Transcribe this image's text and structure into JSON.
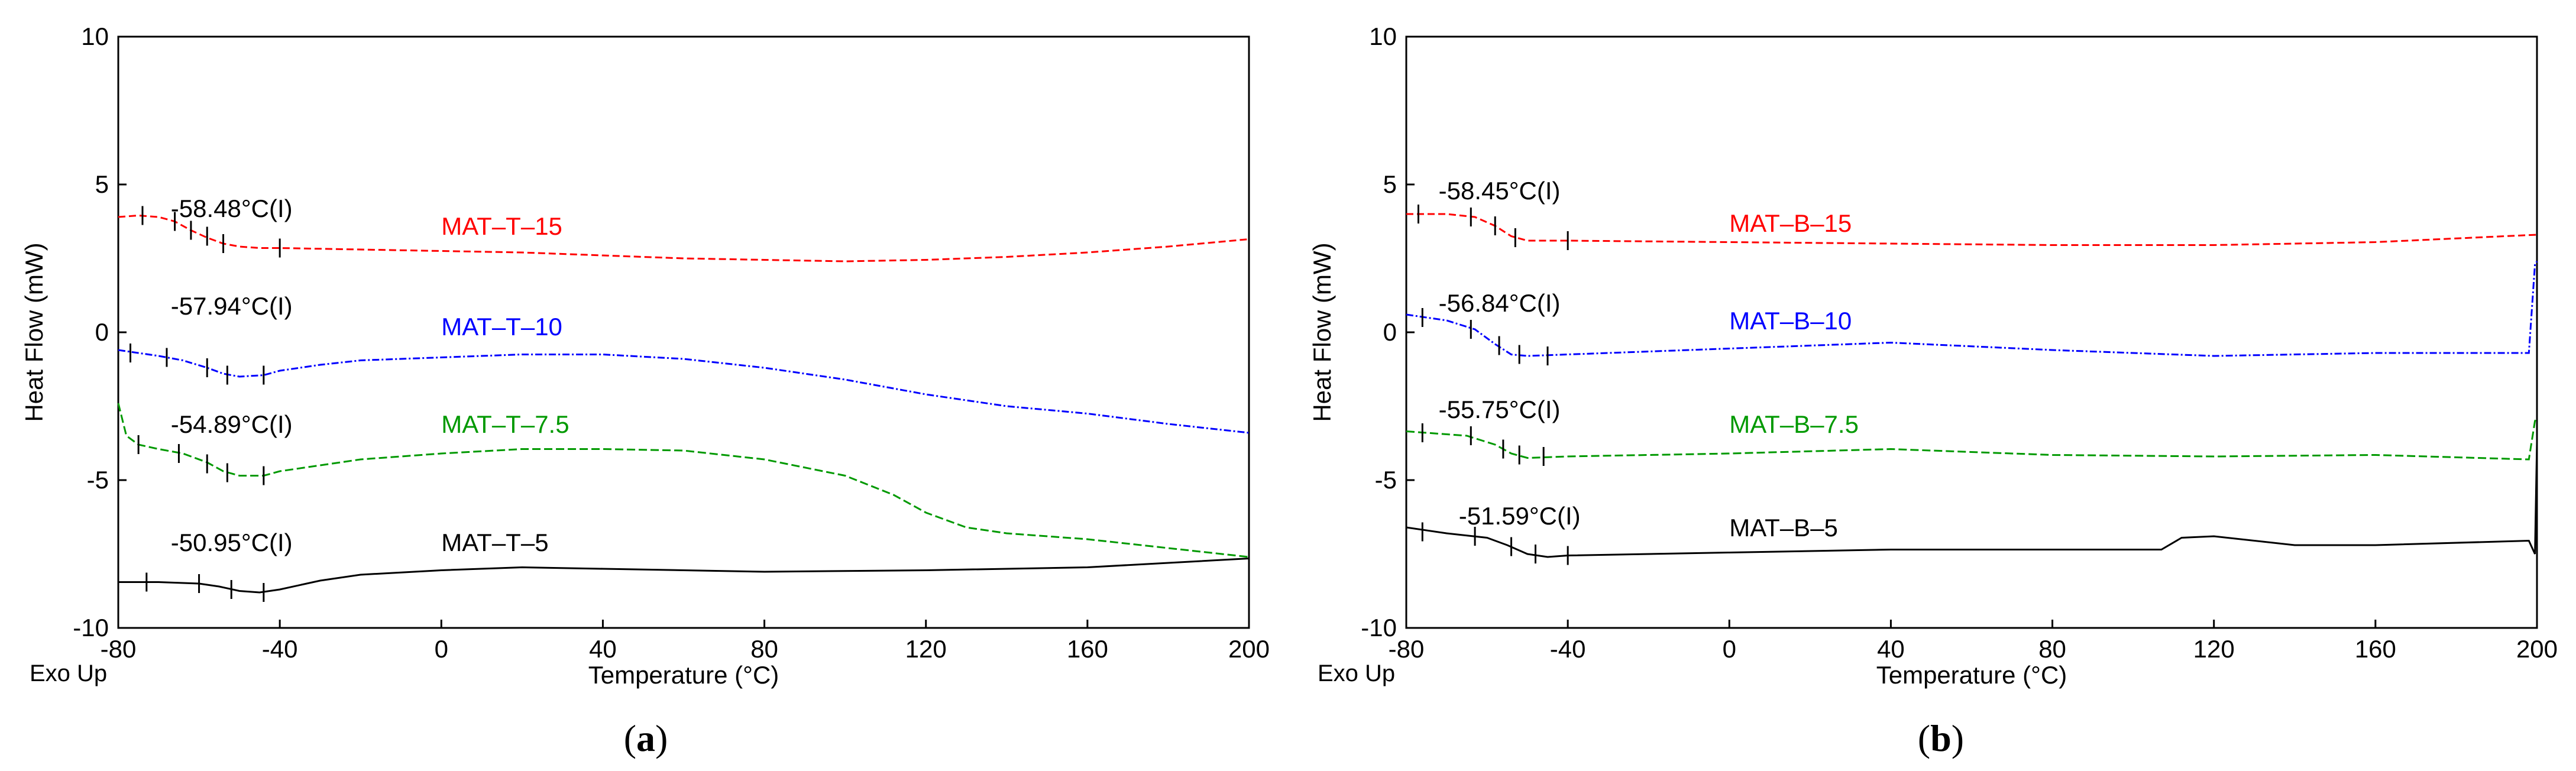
{
  "chart_data": [
    {
      "type": "line",
      "panel_label": "a",
      "xlabel": "Temperature (°C)",
      "ylabel": "Heat Flow (mW)",
      "corner_label": "Exo Up",
      "xlim": [
        -80,
        200
      ],
      "ylim": [
        -10,
        10
      ],
      "xticks": [
        -80,
        -40,
        0,
        40,
        80,
        120,
        160,
        200
      ],
      "yticks": [
        10,
        5,
        0,
        -5,
        -10
      ],
      "series": [
        {
          "name": "MAT–T–15",
          "color": "#ff0000",
          "dash": "12,6",
          "label_pos": [
            0,
            3.3
          ],
          "annotation": "-58.48°C(I)",
          "annotation_pos": [
            -67,
            3.9
          ],
          "points": [
            [
              -80,
              3.9
            ],
            [
              -75,
              3.95
            ],
            [
              -70,
              3.9
            ],
            [
              -66,
              3.75
            ],
            [
              -62,
              3.45
            ],
            [
              -58,
              3.2
            ],
            [
              -54,
              3.0
            ],
            [
              -50,
              2.9
            ],
            [
              -45,
              2.85
            ],
            [
              -40,
              2.85
            ],
            [
              -20,
              2.8
            ],
            [
              0,
              2.75
            ],
            [
              20,
              2.7
            ],
            [
              40,
              2.6
            ],
            [
              60,
              2.5
            ],
            [
              80,
              2.45
            ],
            [
              100,
              2.4
            ],
            [
              120,
              2.45
            ],
            [
              140,
              2.55
            ],
            [
              160,
              2.7
            ],
            [
              180,
              2.9
            ],
            [
              200,
              3.15
            ]
          ],
          "tick_marks": [
            [
              -74,
              3.95
            ],
            [
              -66,
              3.75
            ],
            [
              -62,
              3.45
            ],
            [
              -58,
              3.25
            ],
            [
              -54,
              3.0
            ],
            [
              -40,
              2.85
            ]
          ]
        },
        {
          "name": "MAT–T–10",
          "color": "#0000ff",
          "dash": "12,4,3,4",
          "label_pos": [
            0,
            -0.1
          ],
          "annotation": "-57.94°C(I)",
          "annotation_pos": [
            -67,
            0.6
          ],
          "points": [
            [
              -80,
              -0.6
            ],
            [
              -75,
              -0.7
            ],
            [
              -70,
              -0.8
            ],
            [
              -64,
              -0.95
            ],
            [
              -58,
              -1.2
            ],
            [
              -54,
              -1.4
            ],
            [
              -50,
              -1.5
            ],
            [
              -44,
              -1.45
            ],
            [
              -40,
              -1.3
            ],
            [
              -30,
              -1.1
            ],
            [
              -20,
              -0.95
            ],
            [
              0,
              -0.85
            ],
            [
              20,
              -0.75
            ],
            [
              40,
              -0.75
            ],
            [
              60,
              -0.9
            ],
            [
              80,
              -1.2
            ],
            [
              100,
              -1.6
            ],
            [
              120,
              -2.1
            ],
            [
              140,
              -2.5
            ],
            [
              160,
              -2.75
            ],
            [
              180,
              -3.1
            ],
            [
              200,
              -3.4
            ]
          ],
          "tick_marks": [
            [
              -77,
              -0.7
            ],
            [
              -68,
              -0.85
            ],
            [
              -58,
              -1.2
            ],
            [
              -53,
              -1.45
            ],
            [
              -44,
              -1.45
            ]
          ]
        },
        {
          "name": "MAT–T–7.5",
          "color": "#009900",
          "dash": "14,6",
          "label_pos": [
            0,
            -3.4
          ],
          "annotation": "-54.89°C(I)",
          "annotation_pos": [
            -67,
            -3.4
          ],
          "points": [
            [
              -80,
              -2.4
            ],
            [
              -78,
              -3.5
            ],
            [
              -75,
              -3.8
            ],
            [
              -70,
              -3.95
            ],
            [
              -64,
              -4.1
            ],
            [
              -58,
              -4.4
            ],
            [
              -54,
              -4.7
            ],
            [
              -50,
              -4.85
            ],
            [
              -44,
              -4.85
            ],
            [
              -40,
              -4.7
            ],
            [
              -30,
              -4.5
            ],
            [
              -20,
              -4.3
            ],
            [
              0,
              -4.1
            ],
            [
              20,
              -3.95
            ],
            [
              40,
              -3.95
            ],
            [
              60,
              -4.0
            ],
            [
              80,
              -4.3
            ],
            [
              100,
              -4.85
            ],
            [
              112,
              -5.5
            ],
            [
              120,
              -6.1
            ],
            [
              130,
              -6.6
            ],
            [
              140,
              -6.8
            ],
            [
              160,
              -7.0
            ],
            [
              180,
              -7.3
            ],
            [
              200,
              -7.6
            ]
          ],
          "tick_marks": [
            [
              -75,
              -3.8
            ],
            [
              -65,
              -4.1
            ],
            [
              -58,
              -4.45
            ],
            [
              -53,
              -4.75
            ],
            [
              -44,
              -4.85
            ]
          ]
        },
        {
          "name": "MAT–T–5",
          "color": "#000000",
          "dash": "",
          "label_pos": [
            0,
            -7.4
          ],
          "annotation": "-50.95°C(I)",
          "annotation_pos": [
            -67,
            -7.4
          ],
          "points": [
            [
              -80,
              -8.45
            ],
            [
              -70,
              -8.45
            ],
            [
              -60,
              -8.5
            ],
            [
              -55,
              -8.6
            ],
            [
              -50,
              -8.75
            ],
            [
              -45,
              -8.8
            ],
            [
              -40,
              -8.7
            ],
            [
              -30,
              -8.4
            ],
            [
              -20,
              -8.2
            ],
            [
              0,
              -8.05
            ],
            [
              20,
              -7.95
            ],
            [
              40,
              -8.0
            ],
            [
              80,
              -8.1
            ],
            [
              120,
              -8.05
            ],
            [
              160,
              -7.95
            ],
            [
              200,
              -7.65
            ]
          ],
          "tick_marks": [
            [
              -73,
              -8.45
            ],
            [
              -60,
              -8.5
            ],
            [
              -52,
              -8.7
            ],
            [
              -44,
              -8.8
            ]
          ]
        }
      ]
    },
    {
      "type": "line",
      "panel_label": "b",
      "xlabel": "Temperature (°C)",
      "ylabel": "Heat Flow (mW)",
      "corner_label": "Exo Up",
      "xlim": [
        -80,
        200
      ],
      "ylim": [
        -10,
        10
      ],
      "xticks": [
        -80,
        -40,
        0,
        40,
        80,
        120,
        160,
        200
      ],
      "yticks": [
        10,
        5,
        0,
        -5,
        -10
      ],
      "series": [
        {
          "name": "MAT–B–15",
          "color": "#ff0000",
          "dash": "12,6",
          "label_pos": [
            0,
            3.4
          ],
          "annotation": "-58.45°C(I)",
          "annotation_pos": [
            -72,
            4.5
          ],
          "points": [
            [
              -80,
              4.0
            ],
            [
              -70,
              4.0
            ],
            [
              -63,
              3.9
            ],
            [
              -58,
              3.6
            ],
            [
              -54,
              3.25
            ],
            [
              -50,
              3.1
            ],
            [
              -40,
              3.1
            ],
            [
              0,
              3.05
            ],
            [
              40,
              3.0
            ],
            [
              80,
              2.95
            ],
            [
              120,
              2.95
            ],
            [
              160,
              3.05
            ],
            [
              200,
              3.3
            ]
          ],
          "tick_marks": [
            [
              -77,
              4.0
            ],
            [
              -64,
              3.9
            ],
            [
              -58,
              3.6
            ],
            [
              -53,
              3.2
            ],
            [
              -40,
              3.1
            ]
          ]
        },
        {
          "name": "MAT–B–10",
          "color": "#0000ff",
          "dash": "12,4,3,4",
          "label_pos": [
            0,
            0.1
          ],
          "annotation": "-56.84°C(I)",
          "annotation_pos": [
            -72,
            0.7
          ],
          "points": [
            [
              -80,
              0.6
            ],
            [
              -70,
              0.4
            ],
            [
              -63,
              0.1
            ],
            [
              -58,
              -0.4
            ],
            [
              -54,
              -0.75
            ],
            [
              -50,
              -0.8
            ],
            [
              -40,
              -0.75
            ],
            [
              0,
              -0.55
            ],
            [
              40,
              -0.35
            ],
            [
              80,
              -0.6
            ],
            [
              120,
              -0.8
            ],
            [
              160,
              -0.7
            ],
            [
              198,
              -0.7
            ],
            [
              199.5,
              2.3
            ],
            [
              200,
              2.4
            ]
          ],
          "tick_marks": [
            [
              -76,
              0.5
            ],
            [
              -64,
              0.1
            ],
            [
              -57,
              -0.45
            ],
            [
              -52,
              -0.75
            ],
            [
              -45,
              -0.8
            ]
          ]
        },
        {
          "name": "MAT–B–7.5",
          "color": "#009900",
          "dash": "14,6",
          "label_pos": [
            0,
            -3.4
          ],
          "annotation": "-55.75°C(I)",
          "annotation_pos": [
            -72,
            -2.9
          ],
          "points": [
            [
              -80,
              -3.35
            ],
            [
              -65,
              -3.5
            ],
            [
              -58,
              -3.8
            ],
            [
              -54,
              -4.1
            ],
            [
              -50,
              -4.25
            ],
            [
              -40,
              -4.2
            ],
            [
              0,
              -4.1
            ],
            [
              40,
              -3.95
            ],
            [
              80,
              -4.15
            ],
            [
              120,
              -4.2
            ],
            [
              160,
              -4.15
            ],
            [
              198,
              -4.3
            ],
            [
              199.5,
              -3.0
            ],
            [
              200,
              -2.9
            ]
          ],
          "tick_marks": [
            [
              -76,
              -3.4
            ],
            [
              -64,
              -3.5
            ],
            [
              -56,
              -3.95
            ],
            [
              -52,
              -4.15
            ],
            [
              -46,
              -4.2
            ]
          ]
        },
        {
          "name": "MAT–B–5",
          "color": "#000000",
          "dash": "",
          "label_pos": [
            0,
            -6.9
          ],
          "annotation": "-51.59°C(I)",
          "annotation_pos": [
            -67,
            -6.5
          ],
          "points": [
            [
              -80,
              -6.6
            ],
            [
              -70,
              -6.8
            ],
            [
              -60,
              -6.95
            ],
            [
              -55,
              -7.2
            ],
            [
              -50,
              -7.5
            ],
            [
              -45,
              -7.6
            ],
            [
              -40,
              -7.55
            ],
            [
              0,
              -7.45
            ],
            [
              40,
              -7.35
            ],
            [
              80,
              -7.35
            ],
            [
              107,
              -7.35
            ],
            [
              112,
              -6.95
            ],
            [
              120,
              -6.9
            ],
            [
              140,
              -7.2
            ],
            [
              160,
              -7.2
            ],
            [
              198,
              -7.05
            ],
            [
              199.5,
              -7.5
            ],
            [
              200,
              -3.7
            ]
          ],
          "tick_marks": [
            [
              -76,
              -6.75
            ],
            [
              -63,
              -6.9
            ],
            [
              -54,
              -7.25
            ],
            [
              -48,
              -7.5
            ],
            [
              -40,
              -7.55
            ]
          ]
        }
      ]
    }
  ]
}
